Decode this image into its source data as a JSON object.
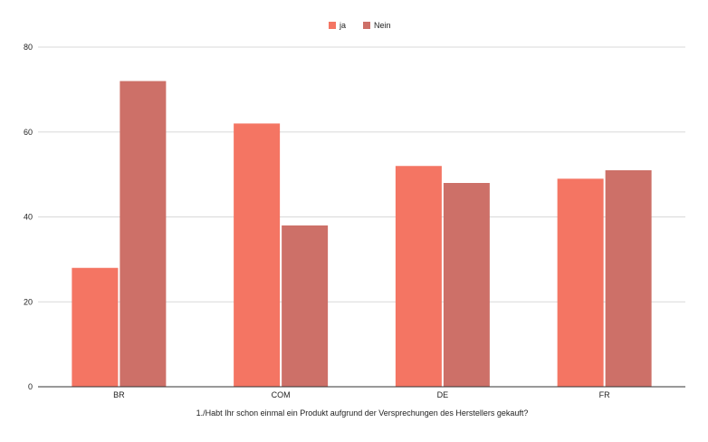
{
  "chart_data": {
    "type": "bar",
    "title": "",
    "categories": [
      "BR",
      "COM",
      "DE",
      "FR"
    ],
    "series": [
      {
        "name": "ja",
        "color": "#f47563",
        "values": [
          28,
          62,
          52,
          49
        ]
      },
      {
        "name": "Nein",
        "color": "#cd7068",
        "values": [
          72,
          38,
          48,
          51
        ]
      }
    ],
    "xlabel": "1./Habt Ihr schon einmal ein Produkt aufgrund der Versprechungen des Herstellers gekauft?",
    "ylabel": "",
    "ylim": [
      0,
      80
    ],
    "yticks": [
      0,
      20,
      40,
      60,
      80
    ],
    "grid": true,
    "legend_position": "top-center"
  }
}
